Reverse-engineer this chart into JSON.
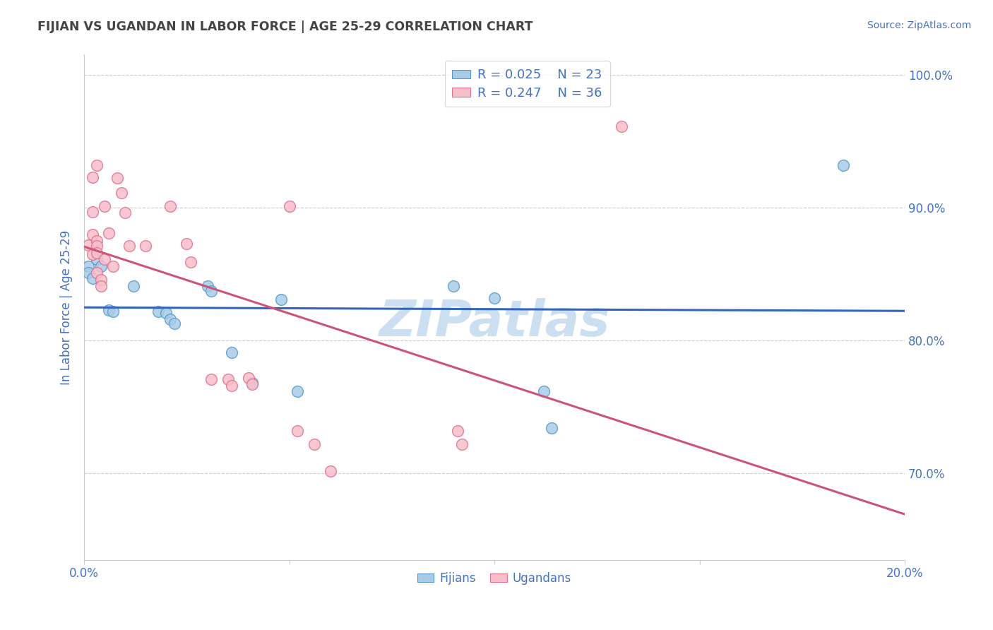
{
  "title": "FIJIAN VS UGANDAN IN LABOR FORCE | AGE 25-29 CORRELATION CHART",
  "source_text": "Source: ZipAtlas.com",
  "ylabel": "In Labor Force | Age 25-29",
  "xlim": [
    0.0,
    0.2
  ],
  "ylim": [
    0.635,
    1.015
  ],
  "yticks": [
    0.7,
    0.8,
    0.9,
    1.0
  ],
  "ytick_labels": [
    "70.0%",
    "80.0%",
    "90.0%",
    "100.0%"
  ],
  "xticks": [
    0.0,
    0.05,
    0.1,
    0.15,
    0.2
  ],
  "xtick_labels": [
    "0.0%",
    "",
    "",
    "",
    "20.0%"
  ],
  "fijian_color": "#a8cce8",
  "ugandan_color": "#f7bfca",
  "fijian_edge_color": "#5599cc",
  "ugandan_edge_color": "#e07090",
  "fijian_line_color": "#3366bb",
  "ugandan_line_color": "#cc5577",
  "legend_fijian": "R = 0.025    N = 23",
  "legend_ugandan": "R = 0.247    N = 36",
  "fijian_points": [
    [
      0.001,
      0.856
    ],
    [
      0.001,
      0.851
    ],
    [
      0.002,
      0.847
    ],
    [
      0.003,
      0.861
    ],
    [
      0.004,
      0.856
    ],
    [
      0.006,
      0.823
    ],
    [
      0.007,
      0.822
    ],
    [
      0.012,
      0.841
    ],
    [
      0.018,
      0.822
    ],
    [
      0.02,
      0.821
    ],
    [
      0.021,
      0.816
    ],
    [
      0.022,
      0.813
    ],
    [
      0.03,
      0.841
    ],
    [
      0.031,
      0.837
    ],
    [
      0.036,
      0.791
    ],
    [
      0.041,
      0.768
    ],
    [
      0.048,
      0.831
    ],
    [
      0.052,
      0.762
    ],
    [
      0.09,
      0.841
    ],
    [
      0.1,
      0.832
    ],
    [
      0.112,
      0.762
    ],
    [
      0.114,
      0.734
    ],
    [
      0.185,
      0.932
    ]
  ],
  "ugandan_points": [
    [
      0.001,
      0.872
    ],
    [
      0.002,
      0.865
    ],
    [
      0.002,
      0.923
    ],
    [
      0.002,
      0.897
    ],
    [
      0.002,
      0.88
    ],
    [
      0.003,
      0.875
    ],
    [
      0.003,
      0.932
    ],
    [
      0.003,
      0.871
    ],
    [
      0.003,
      0.866
    ],
    [
      0.003,
      0.851
    ],
    [
      0.004,
      0.846
    ],
    [
      0.004,
      0.841
    ],
    [
      0.005,
      0.861
    ],
    [
      0.005,
      0.901
    ],
    [
      0.006,
      0.881
    ],
    [
      0.007,
      0.856
    ],
    [
      0.008,
      0.922
    ],
    [
      0.009,
      0.911
    ],
    [
      0.01,
      0.896
    ],
    [
      0.011,
      0.871
    ],
    [
      0.015,
      0.871
    ],
    [
      0.021,
      0.901
    ],
    [
      0.025,
      0.873
    ],
    [
      0.026,
      0.859
    ],
    [
      0.031,
      0.771
    ],
    [
      0.035,
      0.771
    ],
    [
      0.036,
      0.766
    ],
    [
      0.04,
      0.772
    ],
    [
      0.041,
      0.767
    ],
    [
      0.05,
      0.901
    ],
    [
      0.052,
      0.732
    ],
    [
      0.056,
      0.722
    ],
    [
      0.06,
      0.702
    ],
    [
      0.091,
      0.732
    ],
    [
      0.092,
      0.722
    ],
    [
      0.131,
      0.961
    ]
  ],
  "background_color": "#ffffff",
  "grid_color": "#cccccc",
  "title_color": "#444444",
  "axis_label_color": "#4472c4",
  "watermark_text": "ZIPatlas",
  "watermark_color": "#ccdff0"
}
